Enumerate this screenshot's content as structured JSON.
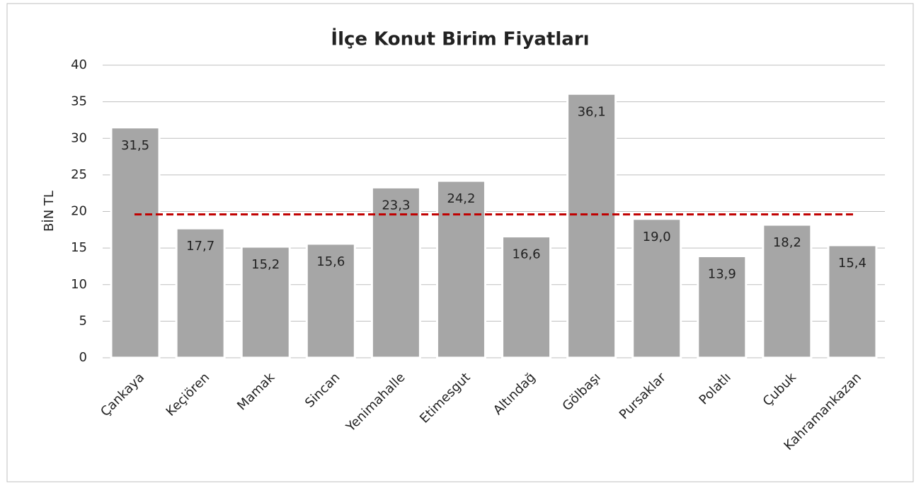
{
  "chart_data": {
    "type": "bar",
    "title": "İlçe Konut Birim Fiyatları",
    "y_label": "BİN TL",
    "categories": [
      "Çankaya",
      "Keçiören",
      "Mamak",
      "Sincan",
      "Yenimahalle",
      "Etimesgut",
      "Altındağ",
      "Gölbaşı",
      "Pursaklar",
      "Polatlı",
      "Çubuk",
      "Kahramankazan"
    ],
    "values": [
      31.5,
      17.7,
      15.2,
      15.6,
      23.3,
      24.2,
      16.6,
      36.1,
      19.0,
      13.9,
      18.2,
      15.4
    ],
    "value_labels": [
      "31,5",
      "17,7",
      "15,2",
      "15,6",
      "23,3",
      "24,2",
      "16,6",
      "36,1",
      "19,0",
      "13,9",
      "18,2",
      "15,4"
    ],
    "color": "#a6a6a6",
    "reference_line": {
      "value": 19.6,
      "color": "#c00000"
    },
    "ylim": [
      0,
      40
    ],
    "yticks": [
      0,
      5,
      10,
      15,
      20,
      25,
      30,
      35,
      40
    ],
    "grid": true
  }
}
